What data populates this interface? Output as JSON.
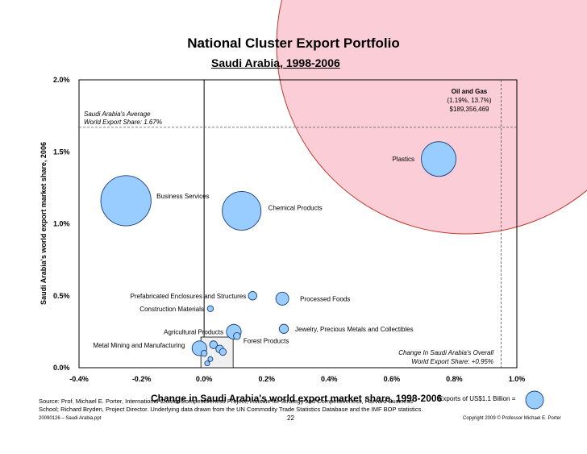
{
  "header": {
    "title": "National Cluster Export Portfolio",
    "subtitle": "Saudi Arabia, 1998-2006"
  },
  "chart_data": {
    "type": "scatter",
    "subtype": "bubble",
    "xlabel": "Change in Saudi Arabia's world export market share, 1998-2006",
    "ylabel": "Saudi Arabia's world export market share, 2006",
    "xlim": [
      -0.4,
      1.0
    ],
    "ylim": [
      0.0,
      2.0
    ],
    "x_ticks": [
      "-0.4%",
      "-0.2%",
      "0.0%",
      "0.2%",
      "0.4%",
      "0.6%",
      "0.8%",
      "1.0%"
    ],
    "y_ticks": [
      "0.0%",
      "0.5%",
      "1.0%",
      "1.5%",
      "2.0%"
    ],
    "avg_share": {
      "value": 1.67,
      "label_line1": "Saudi Arabia's Average",
      "label_line2": "World Export Share: 1.67%"
    },
    "overall_change": {
      "value": 0.95,
      "label_line1": "Change In Saudi Arabia's Overall",
      "label_line2": "World Export Share:  +0.95%"
    },
    "big_bubble": {
      "name": "Oil and Gas",
      "x": 1.19,
      "y": 13.7,
      "line1": "Oil and Gas",
      "line2": "(1.19%, 13.7%)",
      "line3": "$189,356,469",
      "color": "#fbcdd6",
      "stroke": "#c0392b"
    },
    "bubble_color": "#99ccff",
    "clusters": [
      {
        "name": "Plastics",
        "x": 0.75,
        "y": 1.45,
        "size": 100
      },
      {
        "name": "Business Services",
        "x": -0.25,
        "y": 1.16,
        "size": 210
      },
      {
        "name": "Chemical Products",
        "x": 0.12,
        "y": 1.09,
        "size": 125
      },
      {
        "name": "Prefabricated Enclosures and Structures",
        "x": 0.155,
        "y": 0.5,
        "size": 6
      },
      {
        "name": "Processed Foods",
        "x": 0.25,
        "y": 0.48,
        "size": 14
      },
      {
        "name": "Construction Materials",
        "x": 0.02,
        "y": 0.41,
        "size": 3
      },
      {
        "name": "Agricultural Products",
        "x": 0.095,
        "y": 0.25,
        "size": 18
      },
      {
        "name": "Jewelry, Precious Metals and Collectibles",
        "x": 0.255,
        "y": 0.27,
        "size": 7
      },
      {
        "name": "Forest Products",
        "x": 0.105,
        "y": 0.22,
        "size": 4
      },
      {
        "name": "Metal Mining and Manufacturing",
        "x": -0.015,
        "y": 0.135,
        "size": 18
      },
      {
        "name": "",
        "x": 0.03,
        "y": 0.16,
        "size": 5
      },
      {
        "name": "",
        "x": 0.05,
        "y": 0.13,
        "size": 5
      },
      {
        "name": "",
        "x": 0.06,
        "y": 0.11,
        "size": 4
      },
      {
        "name": "",
        "x": 0.0,
        "y": 0.1,
        "size": 3
      },
      {
        "name": "",
        "x": 0.02,
        "y": 0.06,
        "size": 2
      },
      {
        "name": "",
        "x": 0.01,
        "y": 0.03,
        "size": 2
      }
    ]
  },
  "legend": {
    "label": "Exports of US$1.1 Billion ="
  },
  "footer": {
    "source": "Source: Prof. Michael E. Porter, International Cluster Competitiveness Project, Institute for Strategy and Competitiveness, Harvard Business School; Richard Bryden, Project Director. Underlying data drawn from the UN Commodity Trade Statistics Database and the IMF BOP statistics.",
    "file": "20090126 – Saudi Arabia.ppt",
    "page": "22",
    "copyright": "Copyright 2009 © Professor Michael E. Porter"
  }
}
